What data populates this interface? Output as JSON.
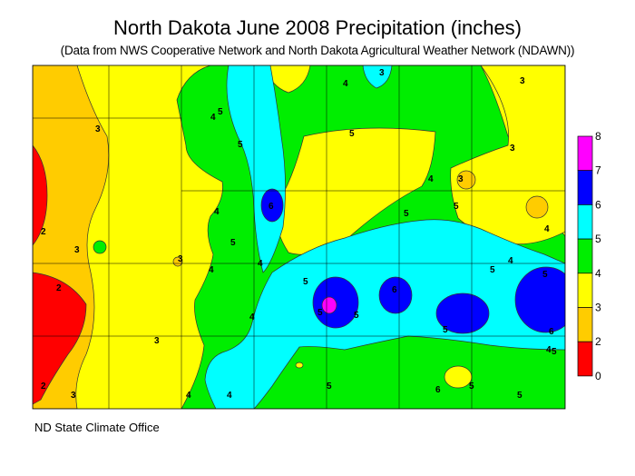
{
  "title": "North Dakota June 2008 Precipitation (inches)",
  "subtitle": "(Data from NWS Cooperative Network and North Dakota Agricultural Weather Network (NDAWN))",
  "footer": "ND State Climate Office",
  "legend": {
    "bins": [
      {
        "label": "0",
        "color": "#ff0000"
      },
      {
        "label": "2",
        "color": "#ffcc00"
      },
      {
        "label": "3",
        "color": "#ffff00"
      },
      {
        "label": "4",
        "color": "#00ee00"
      },
      {
        "label": "5",
        "color": "#00ffff"
      },
      {
        "label": "6",
        "color": "#0000ff"
      },
      {
        "label": "7",
        "color": "#ff00ff"
      }
    ],
    "top_label": "8"
  },
  "contour_labels": [
    "3",
    "3",
    "2",
    "2",
    "2",
    "3",
    "3",
    "3",
    "4",
    "4",
    "5",
    "5",
    "4",
    "5",
    "4",
    "4",
    "5",
    "4",
    "3",
    "3",
    "4",
    "3",
    "3",
    "4",
    "5",
    "5",
    "6",
    "5",
    "5",
    "5",
    "6",
    "5",
    "5",
    "4",
    "5",
    "4",
    "6",
    "5",
    "6",
    "5",
    "5",
    "4",
    "4",
    "5"
  ]
}
